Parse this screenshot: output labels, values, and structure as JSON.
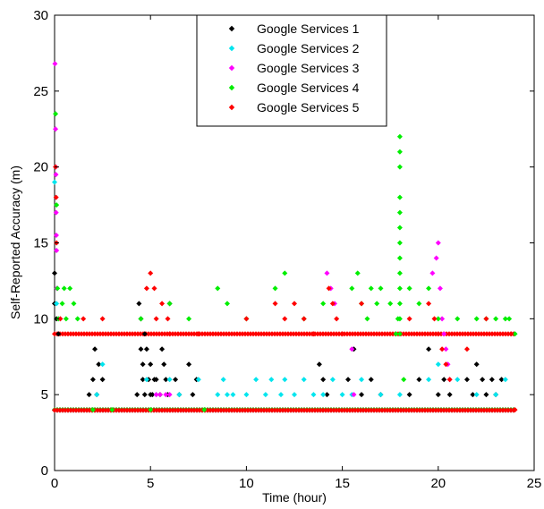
{
  "chart_data": {
    "type": "scatter",
    "title": "",
    "xlabel": "Time (hour)",
    "ylabel": "Self-Reported Accuracy (m)",
    "xlim": [
      0,
      25
    ],
    "ylim": [
      0,
      30
    ],
    "xticks": [
      0,
      5,
      10,
      15,
      20,
      25
    ],
    "yticks": [
      0,
      5,
      10,
      15,
      20,
      25,
      30
    ],
    "grid": false,
    "legend_position": "top-center",
    "marker": "diamond",
    "series": [
      {
        "name": "Google Services 1",
        "color": "#000000",
        "x": [
          0,
          0,
          0.1,
          0.2,
          1.8,
          2.0,
          2.1,
          2.2,
          2.3,
          2.5,
          4.3,
          4.4,
          4.5,
          4.5,
          4.6,
          4.6,
          4.7,
          4.7,
          4.8,
          4.9,
          5.0,
          5.0,
          5.1,
          5.2,
          5.3,
          5.5,
          5.6,
          5.7,
          5.8,
          5.9,
          6.0,
          6.3,
          6.5,
          7.0,
          7.2,
          7.4,
          13.8,
          14.0,
          14.2,
          15.3,
          15.6,
          16.0,
          16.5,
          17.0,
          18.5,
          19.0,
          19.5,
          20.0,
          20.3,
          20.6,
          21.5,
          21.8,
          22.0,
          22.3,
          22.5,
          22.8,
          23.0,
          23.3
        ],
        "y": [
          13,
          11,
          10,
          9,
          5,
          6,
          8,
          5,
          7,
          6,
          5,
          11,
          10,
          8,
          7,
          6,
          5,
          9,
          8,
          6,
          5,
          7,
          5,
          6,
          6,
          5,
          8,
          7,
          6,
          5,
          11,
          6,
          5,
          7,
          5,
          6,
          7,
          6,
          5,
          6,
          8,
          5,
          6,
          5,
          5,
          6,
          8,
          5,
          6,
          5,
          6,
          5,
          7,
          6,
          5,
          6,
          5,
          6
        ]
      },
      {
        "name": "Google Services 2",
        "color": "#00e5ee",
        "x": [
          0,
          0.1,
          2.2,
          2.5,
          4.8,
          5.3,
          6.0,
          6.5,
          7.5,
          8.5,
          8.8,
          9.0,
          9.3,
          10.0,
          10.5,
          11.0,
          11.3,
          11.8,
          12.0,
          12.5,
          13.0,
          13.5,
          14.0,
          14.5,
          15.0,
          15.5,
          16.0,
          17.0,
          18.0,
          19.5,
          20.0,
          21.0,
          22.0,
          23.0,
          23.5
        ],
        "y": [
          19,
          11,
          5,
          7,
          6,
          5,
          6,
          5,
          6,
          5,
          6,
          5,
          5,
          5,
          6,
          5,
          6,
          5,
          6,
          5,
          6,
          5,
          5,
          6,
          5,
          5,
          6,
          5,
          5,
          6,
          7,
          6,
          5,
          5,
          6
        ]
      },
      {
        "name": "Google Services 3",
        "color": "#ff00ff",
        "x": [
          0.02,
          0.05,
          0.06,
          0.07,
          0.08,
          0.09,
          0.1,
          0.12,
          5.3,
          5.5,
          5.8,
          6.0,
          14.2,
          14.4,
          14.6,
          15.5,
          15.6,
          19.7,
          19.9,
          20.0,
          20.1,
          20.2,
          20.3,
          20.4,
          20.5,
          20.6
        ],
        "y": [
          26.8,
          22.5,
          20,
          19.5,
          17,
          15.5,
          14.5,
          12,
          5,
          5,
          5,
          5,
          13,
          12,
          11,
          8,
          5,
          13,
          14,
          15,
          12,
          10,
          9,
          8,
          7,
          6
        ]
      },
      {
        "name": "Google Services 4",
        "color": "#00ee00",
        "x": [
          0.05,
          0.1,
          0.15,
          0.2,
          0.4,
          0.5,
          0.6,
          0.8,
          1.0,
          1.2,
          2.0,
          3.0,
          4.5,
          5.0,
          6.0,
          7.0,
          7.8,
          8.5,
          9.0,
          10.0,
          11.5,
          12.0,
          13.0,
          14.0,
          15.5,
          15.8,
          16.0,
          16.3,
          16.5,
          16.8,
          17.0,
          17.5,
          17.8,
          17.9,
          18.0,
          18.0,
          18.0,
          18.0,
          18.0,
          18.0,
          18.0,
          18.0,
          18.0,
          18.0,
          18.0,
          18.0,
          18.0,
          18.2,
          18.5,
          19.0,
          19.5,
          20.0,
          21.0,
          22.0,
          22.5,
          23.0,
          23.5,
          23.7,
          24.0
        ],
        "y": [
          23.5,
          17.5,
          12,
          10,
          11,
          12,
          10,
          12,
          11,
          10,
          4,
          4,
          10,
          4,
          11,
          10,
          4,
          12,
          11,
          10,
          12,
          13,
          10,
          11,
          12,
          13,
          11,
          10,
          12,
          11,
          12,
          11,
          9,
          10,
          22,
          21,
          20,
          18,
          17,
          16,
          15,
          14,
          13,
          12,
          11,
          10,
          9,
          6,
          12,
          11,
          12,
          10,
          10,
          10,
          10,
          10,
          10,
          10,
          9
        ]
      },
      {
        "name": "Google Services 5",
        "color": "#ff0000",
        "x": [
          0.05,
          0.08,
          0.1,
          0.3,
          1.5,
          2.5,
          4.8,
          5.0,
          5.2,
          5.3,
          5.6,
          5.9,
          6.0,
          7.5,
          10.0,
          11.5,
          12.0,
          12.5,
          13.0,
          13.5,
          14.3,
          14.5,
          14.7,
          15.0,
          16.0,
          18.5,
          19.5,
          19.8,
          20.0,
          20.2,
          20.4,
          20.6,
          21.5,
          22.5,
          23.8,
          24.0
        ],
        "y": [
          20,
          18,
          15,
          10,
          10,
          10,
          12,
          13,
          12,
          10,
          11,
          10,
          9,
          9,
          10,
          11,
          10,
          11,
          10,
          9,
          12,
          11,
          10,
          9,
          11,
          10,
          11,
          10,
          9,
          8,
          7,
          6,
          8,
          10,
          9,
          4
        ]
      }
    ],
    "baselines": [
      {
        "series": 0,
        "y": 4,
        "x_from": 0,
        "x_to": 24
      },
      {
        "series": 1,
        "y": 4,
        "x_from": 0,
        "x_to": 24
      },
      {
        "series": 3,
        "y": 4,
        "x_from": 0,
        "x_to": 24
      },
      {
        "series": 4,
        "y": 4,
        "x_from": 0,
        "x_to": 24
      },
      {
        "series": 4,
        "y": 9,
        "x_from": 0,
        "x_to": 24
      }
    ]
  }
}
